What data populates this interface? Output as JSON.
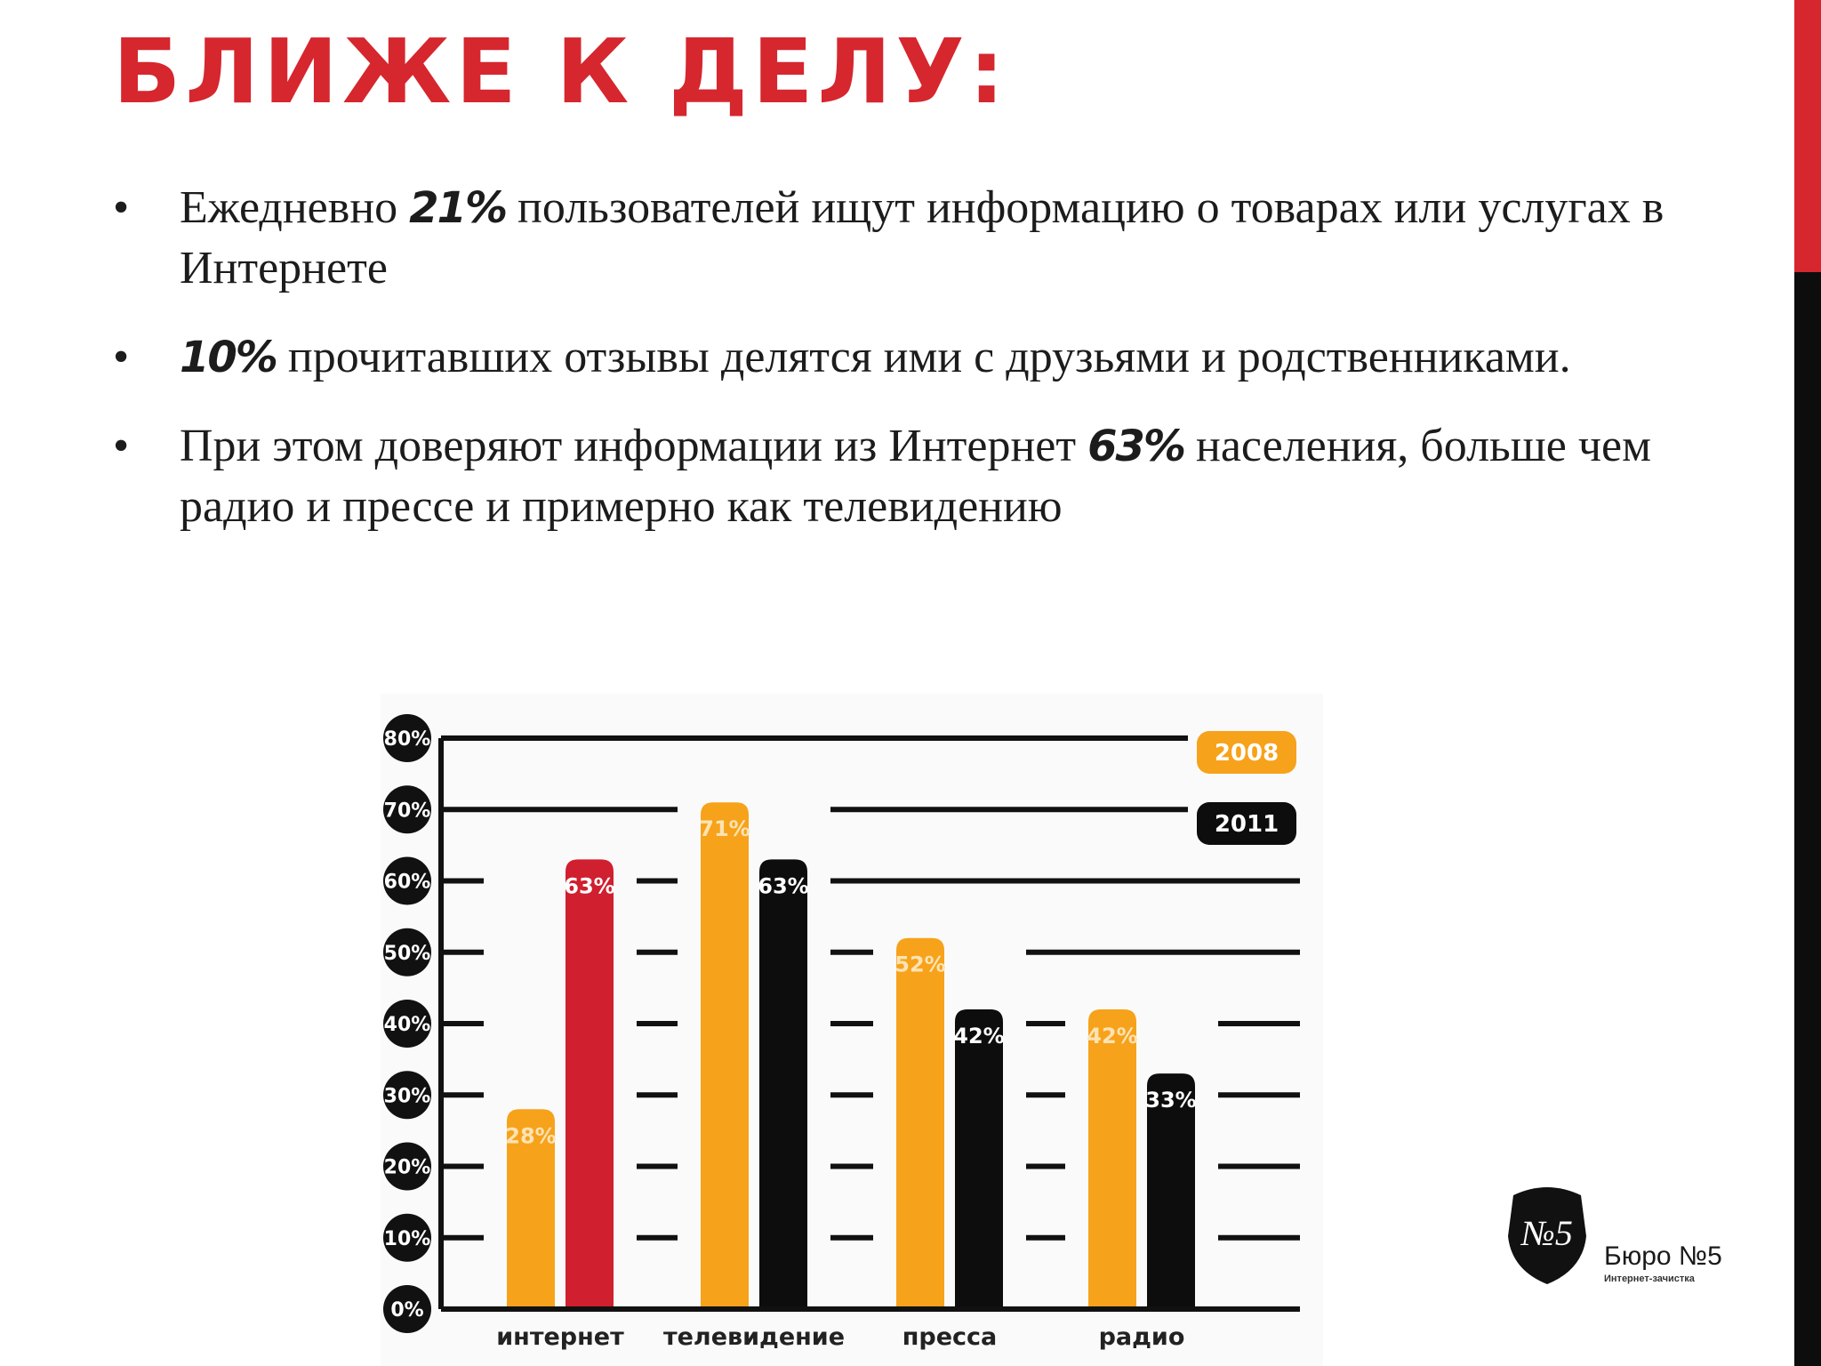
{
  "slide": {
    "title": "БЛИЖЕ К ДЕЛУ:",
    "accent_colors": {
      "red": "#d6262e",
      "black": "#0d0d0d"
    }
  },
  "bullets": [
    {
      "marker": "•",
      "before": "Ежедневно ",
      "highlight": "21%",
      "after": " пользователей ищут информацию о товарах или услугах в Интернете"
    },
    {
      "marker": "•",
      "before": "",
      "highlight": "10%",
      "after": " прочитавших отзывы делятся ими с друзьями и родственниками."
    },
    {
      "marker": "•",
      "before": "При этом доверяют информации из Интернет ",
      "highlight": "63%",
      "after": " населения, больше чем радио и прессе и примерно как телевидению"
    }
  ],
  "chart_data": {
    "type": "bar",
    "categories": [
      "интернет",
      "телевидение",
      "пресса",
      "радио"
    ],
    "series": [
      {
        "name": "2008",
        "color": "#f7a21b",
        "values": [
          28,
          71,
          52,
          42
        ]
      },
      {
        "name": "2011",
        "color": "#0d0d0d",
        "values": [
          63,
          63,
          42,
          33
        ],
        "highlight_color": "#d01f2f",
        "highlight_index": 0
      }
    ],
    "value_suffix": "%",
    "ylim": [
      0,
      80
    ],
    "yticks": [
      0,
      10,
      20,
      30,
      40,
      50,
      60,
      70,
      80
    ],
    "ytick_labels": [
      "0%",
      "10%",
      "20%",
      "30%",
      "40%",
      "50%",
      "60%",
      "70%",
      "80%"
    ],
    "grid": true,
    "legend_position": "top-right"
  },
  "logo": {
    "mark": "№5",
    "name": "Бюро №5",
    "subtitle": "Интернет-зачистка"
  }
}
